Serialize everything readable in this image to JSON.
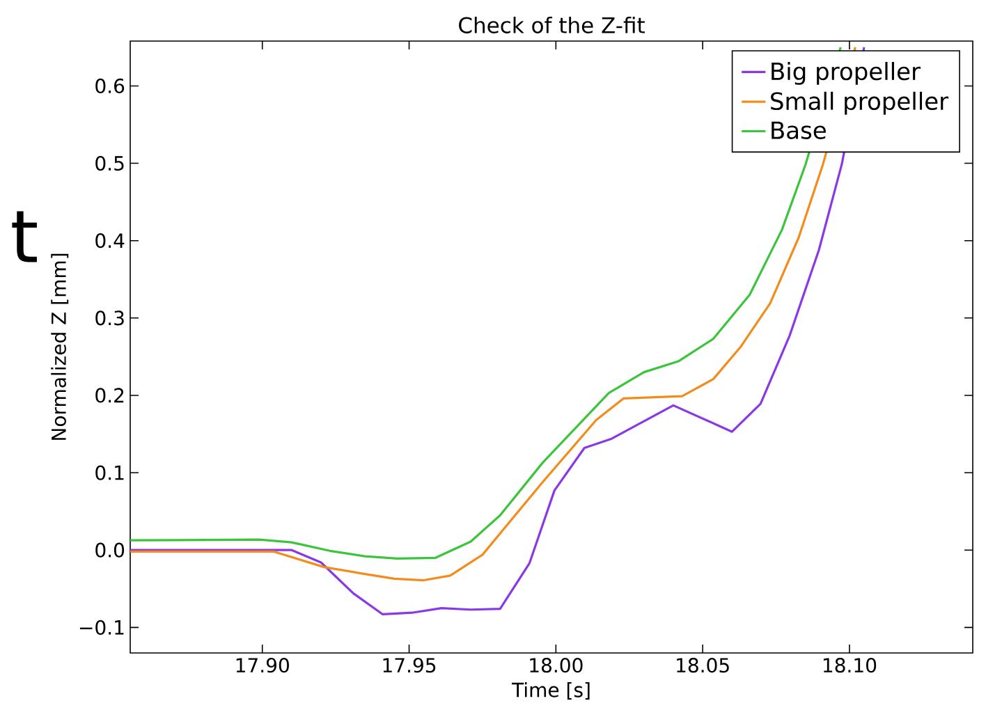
{
  "chart_data": {
    "type": "line",
    "title": "Check of the Z-fit",
    "xlabel": "Time [s]",
    "ylabel": "Normalized Z [mm]",
    "annotations": [
      "t"
    ],
    "xlim": [
      17.855,
      18.142
    ],
    "ylim": [
      -0.133,
      0.658
    ],
    "xticks": [
      {
        "value": 17.9,
        "label": "17.90"
      },
      {
        "value": 17.95,
        "label": "17.95"
      },
      {
        "value": 18.0,
        "label": "18.00"
      },
      {
        "value": 18.05,
        "label": "18.05"
      },
      {
        "value": 18.1,
        "label": "18.10"
      }
    ],
    "yticks": [
      {
        "value": -0.1,
        "label": "−0.1"
      },
      {
        "value": 0.0,
        "label": "0.0"
      },
      0.1,
      0.2,
      0.3,
      0.4,
      0.5,
      0.6
    ],
    "legend": "top right",
    "series": [
      {
        "name": "Big propeller",
        "color": "#8a38e6",
        "x": [
          17.855,
          17.91,
          17.92,
          17.931,
          17.941,
          17.951,
          17.961,
          17.971,
          17.981,
          17.991,
          17.9995,
          18.0097,
          18.019,
          18.04,
          18.06,
          18.0697,
          18.0796,
          18.0896,
          18.0974,
          18.105
        ],
        "values": [
          0.0,
          0.0,
          -0.016,
          -0.056,
          -0.083,
          -0.081,
          -0.075,
          -0.077,
          -0.076,
          -0.017,
          0.077,
          0.132,
          0.144,
          0.187,
          0.153,
          0.189,
          0.277,
          0.388,
          0.499,
          0.65
        ]
      },
      {
        "name": "Small propeller",
        "color": "#f28c1c",
        "x": [
          17.855,
          17.904,
          17.921,
          17.935,
          17.945,
          17.955,
          17.964,
          17.975,
          17.9955,
          18.0137,
          18.023,
          18.043,
          18.0536,
          18.063,
          18.073,
          18.0827,
          18.091,
          18.102
        ],
        "values": [
          -0.002,
          -0.002,
          -0.022,
          -0.031,
          -0.037,
          -0.039,
          -0.033,
          -0.006,
          0.088,
          0.168,
          0.196,
          0.199,
          0.221,
          0.263,
          0.319,
          0.404,
          0.499,
          0.65
        ]
      },
      {
        "name": "Base",
        "color": "#3cc43c",
        "x": [
          17.855,
          17.899,
          17.91,
          17.923,
          17.935,
          17.946,
          17.959,
          17.971,
          17.981,
          17.9955,
          18.018,
          18.03,
          18.0417,
          18.0536,
          18.066,
          18.077,
          18.085,
          18.097
        ],
        "values": [
          0.0126,
          0.0135,
          0.01,
          -0.001,
          -0.008,
          -0.011,
          -0.01,
          0.011,
          0.045,
          0.113,
          0.203,
          0.23,
          0.244,
          0.273,
          0.33,
          0.414,
          0.498,
          0.65
        ]
      }
    ]
  }
}
